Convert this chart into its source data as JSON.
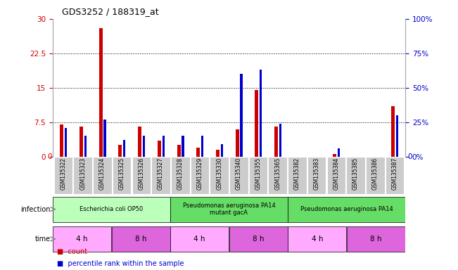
{
  "title": "GDS3252 / 188319_at",
  "samples": [
    "GSM135322",
    "GSM135323",
    "GSM135324",
    "GSM135325",
    "GSM135326",
    "GSM135327",
    "GSM135328",
    "GSM135329",
    "GSM135330",
    "GSM135340",
    "GSM135355",
    "GSM135365",
    "GSM135382",
    "GSM135383",
    "GSM135384",
    "GSM135385",
    "GSM135386",
    "GSM135387"
  ],
  "count_values": [
    7.0,
    6.5,
    28.0,
    2.5,
    6.5,
    3.5,
    2.5,
    2.0,
    1.5,
    6.0,
    14.5,
    6.5,
    0.0,
    0.0,
    0.5,
    0.0,
    0.0,
    11.0
  ],
  "percentile_values": [
    21.0,
    15.0,
    27.0,
    12.0,
    15.0,
    15.0,
    15.0,
    15.0,
    9.0,
    60.0,
    63.0,
    24.0,
    0.0,
    0.0,
    6.0,
    0.0,
    0.0,
    30.0
  ],
  "count_color": "#cc0000",
  "percentile_color": "#0000cc",
  "ylim_left": [
    0,
    30
  ],
  "yticks_left": [
    0,
    7.5,
    15,
    22.5,
    30
  ],
  "ylim_right": [
    0,
    100
  ],
  "yticks_right": [
    0,
    25,
    50,
    75,
    100
  ],
  "ytick_labels_left": [
    "0",
    "7.5",
    "15",
    "22.5",
    "30"
  ],
  "ytick_labels_right": [
    "0%",
    "25%",
    "50%",
    "75%",
    "100%"
  ],
  "infection_groups": [
    {
      "label": "Escherichia coli OP50",
      "start": 0,
      "end": 6,
      "color": "#bbffbb"
    },
    {
      "label": "Pseudomonas aeruginosa PA14\nmutant gacA",
      "start": 6,
      "end": 12,
      "color": "#66dd66"
    },
    {
      "label": "Pseudomonas aeruginosa PA14",
      "start": 12,
      "end": 18,
      "color": "#66dd66"
    }
  ],
  "time_groups": [
    {
      "label": "4 h",
      "start": 0,
      "end": 3,
      "color": "#ffaaff"
    },
    {
      "label": "8 h",
      "start": 3,
      "end": 6,
      "color": "#dd66dd"
    },
    {
      "label": "4 h",
      "start": 6,
      "end": 9,
      "color": "#ffaaff"
    },
    {
      "label": "8 h",
      "start": 9,
      "end": 12,
      "color": "#dd66dd"
    },
    {
      "label": "4 h",
      "start": 12,
      "end": 15,
      "color": "#ffaaff"
    },
    {
      "label": "8 h",
      "start": 15,
      "end": 18,
      "color": "#dd66dd"
    }
  ],
  "bg_color": "#ffffff",
  "tick_label_color_left": "#cc0000",
  "tick_label_color_right": "#0000cc",
  "legend_count_label": "count",
  "legend_percentile_label": "percentile rank within the sample",
  "infection_label": "infection",
  "time_label": "time",
  "sample_bg_color": "#cccccc"
}
